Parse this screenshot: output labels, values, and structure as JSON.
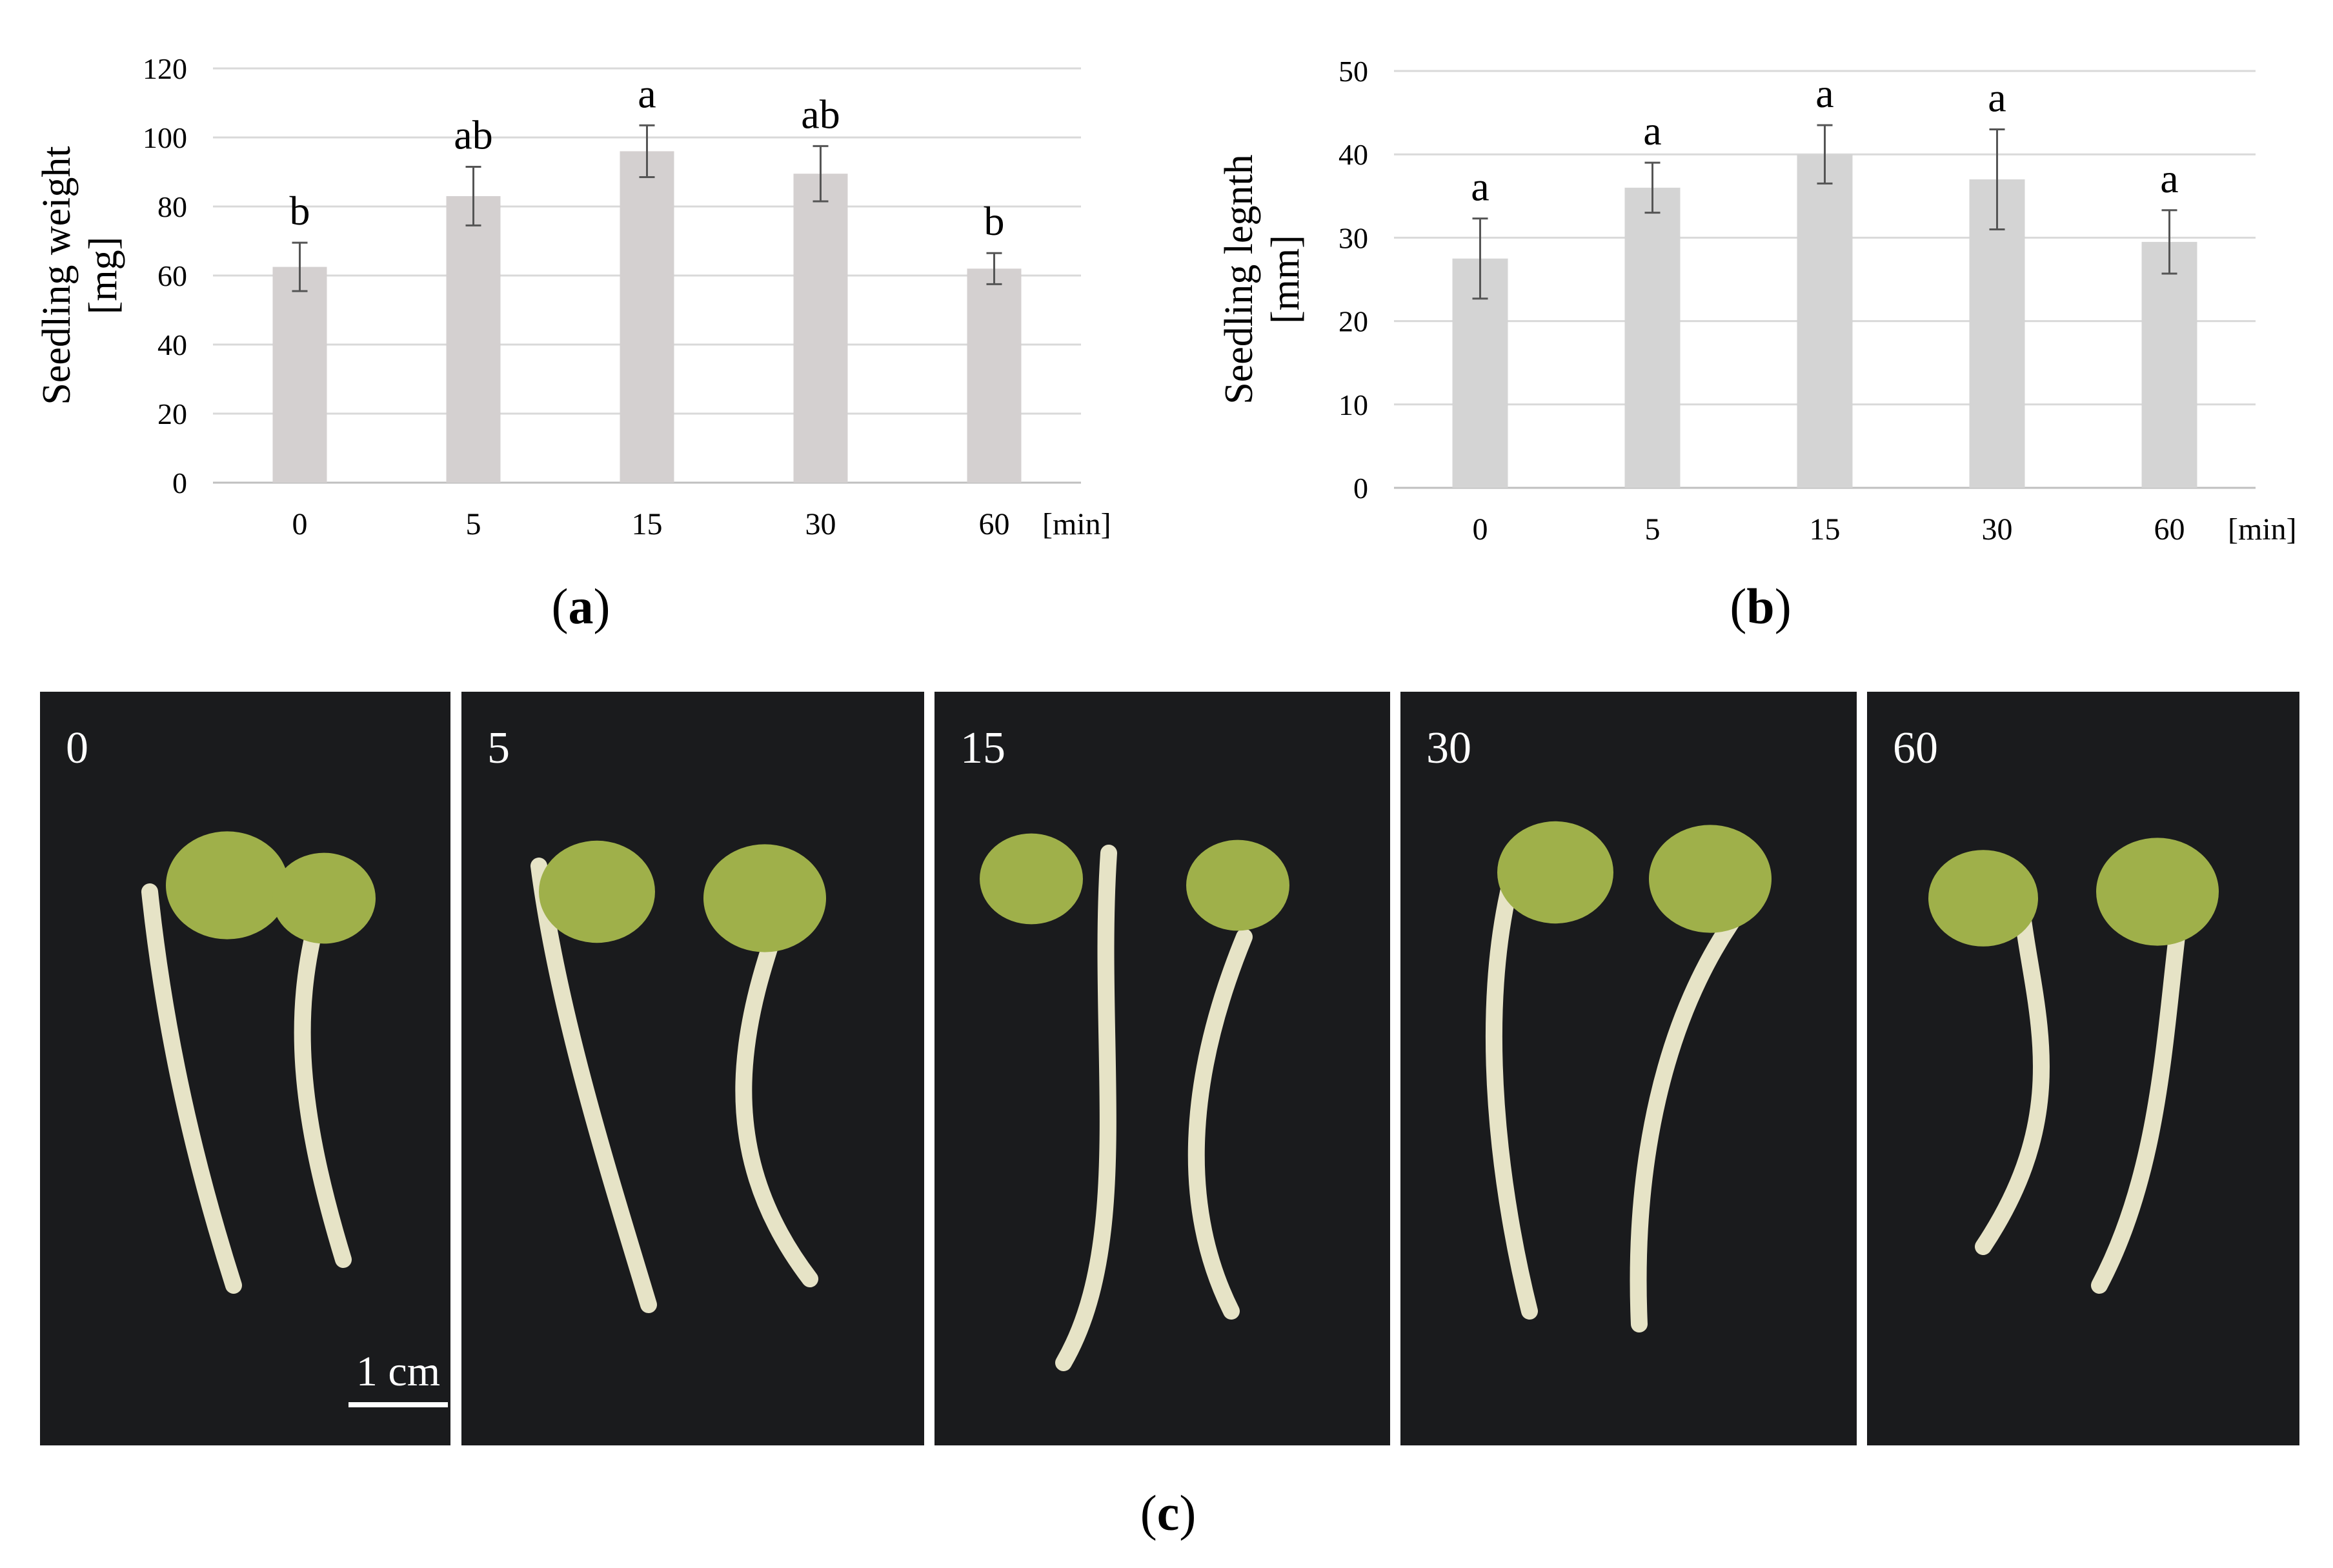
{
  "chart_data": [
    {
      "type": "bar",
      "title": "",
      "xlabel": "",
      "x_unit": "[min]",
      "ylabel_line1": "Seedling weight",
      "ylabel_line2": "[mg]",
      "categories": [
        "0",
        "5",
        "15",
        "30",
        "60"
      ],
      "values": [
        62.5,
        83,
        96,
        89.5,
        62
      ],
      "error": [
        7,
        8.5,
        7.5,
        8,
        4.5
      ],
      "significance": [
        "b",
        "ab",
        "a",
        "ab",
        "b"
      ],
      "ylim": [
        0,
        120
      ],
      "yticks": [
        "0",
        "20",
        "40",
        "60",
        "80",
        "100",
        "120"
      ],
      "grid": true,
      "bar_color": "#d4d0d0",
      "caption_letter": "a"
    },
    {
      "type": "bar",
      "title": "",
      "xlabel": "",
      "x_unit": "[min]",
      "ylabel_line1": "Seedling legnth",
      "ylabel_line2": "[mm]",
      "categories": [
        "0",
        "5",
        "15",
        "30",
        "60"
      ],
      "values": [
        27.5,
        36,
        40,
        37,
        29.5
      ],
      "error": [
        4.8,
        3,
        3.5,
        6,
        3.8
      ],
      "significance": [
        "a",
        "a",
        "a",
        "a",
        "a"
      ],
      "ylim": [
        0,
        50
      ],
      "yticks": [
        "0",
        "10",
        "20",
        "30",
        "40",
        "50"
      ],
      "grid": true,
      "bar_color": "#d4d4d4",
      "caption_letter": "b"
    }
  ],
  "photos": {
    "panels": [
      {
        "label": "0"
      },
      {
        "label": "5"
      },
      {
        "label": "15"
      },
      {
        "label": "30"
      },
      {
        "label": "60"
      }
    ],
    "scale_bar_label": "1 cm",
    "background_color": "#1a1b1d",
    "seed_color": "#9fb04a",
    "sprout_color": "#e6e3c6",
    "caption_letter": "c"
  }
}
